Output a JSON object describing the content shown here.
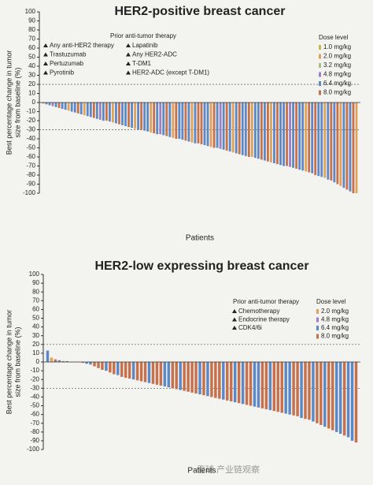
{
  "chart_data": [
    {
      "type": "bar",
      "title": "HER2-positive breast cancer",
      "ylabel": [
        "Best percentage change in tumor",
        "size from baseline (%)"
      ],
      "xlabel": "Patients",
      "ylim": [
        -100,
        100
      ],
      "yticks": [
        100,
        90,
        80,
        70,
        60,
        50,
        40,
        30,
        20,
        10,
        0,
        -10,
        -20,
        -30,
        -40,
        -50,
        -60,
        -70,
        -80,
        -90,
        -100
      ],
      "reference_lines": [
        20,
        -30
      ],
      "values": [
        -1,
        -2,
        -3,
        -4,
        -5,
        -6,
        -7,
        -8,
        -9,
        -10,
        -11,
        -12,
        -13,
        -14,
        -15,
        -16,
        -17,
        -18,
        -19,
        -20,
        -20,
        -21,
        -22,
        -23,
        -24,
        -25,
        -26,
        -27,
        -28,
        -29,
        -30,
        -30,
        -31,
        -32,
        -33,
        -34,
        -35,
        -35,
        -36,
        -37,
        -38,
        -39,
        -40,
        -40,
        -41,
        -42,
        -43,
        -44,
        -45,
        -45,
        -46,
        -47,
        -48,
        -49,
        -50,
        -50,
        -51,
        -52,
        -53,
        -54,
        -55,
        -56,
        -57,
        -58,
        -59,
        -60,
        -60,
        -61,
        -62,
        -63,
        -64,
        -65,
        -66,
        -67,
        -68,
        -69,
        -70,
        -70,
        -71,
        -72,
        -73,
        -74,
        -75,
        -76,
        -77,
        -78,
        -80,
        -81,
        -82,
        -83,
        -85,
        -86,
        -88,
        -90,
        -92,
        -94,
        -96,
        -98,
        -100,
        -100
      ],
      "bar_dose_levels": [
        5,
        4,
        4,
        3,
        4,
        5,
        4,
        4,
        1,
        4,
        4,
        5,
        4,
        1,
        4,
        4,
        5,
        4,
        3,
        4,
        5,
        4,
        1,
        4,
        5,
        4,
        4,
        5,
        4,
        1,
        4,
        5,
        4,
        4,
        1,
        5,
        4,
        3,
        4,
        5,
        4,
        1,
        5,
        4,
        4,
        5,
        4,
        1,
        4,
        5,
        5,
        4,
        4,
        1,
        5,
        4,
        3,
        4,
        5,
        4,
        1,
        4,
        5,
        4,
        4,
        5,
        1,
        4,
        4,
        5,
        4,
        5,
        1,
        4,
        5,
        4,
        4,
        5,
        3,
        4,
        5,
        4,
        4,
        1,
        5,
        4,
        5,
        4,
        4,
        1,
        4,
        5,
        4,
        5,
        1,
        4,
        5,
        4,
        5,
        1
      ],
      "therapy_legend": {
        "title": "Prior anti-tumor therapy",
        "items": [
          "Any anti-HER2 therapy",
          "Trastuzumab",
          "Pertuzumab",
          "Pyrotinib",
          "Lapatinib",
          "Any HER2-ADC",
          "T-DM1",
          "HER2-ADC (except T-DM1)"
        ]
      },
      "dose_legend": {
        "title": "Dose level",
        "items": [
          {
            "name": "1.0 mg/kg",
            "color": "#c7b84c"
          },
          {
            "name": "2.0 mg/kg",
            "color": "#e0a25a"
          },
          {
            "name": "3.2 mg/kg",
            "color": "#a9c27a"
          },
          {
            "name": "4.8 mg/kg",
            "color": "#9c80c2"
          },
          {
            "name": "6.4 mg/kg",
            "color": "#5d88c6"
          },
          {
            "name": "8.0 mg/kg",
            "color": "#c7714c"
          }
        ]
      }
    },
    {
      "type": "bar",
      "title": "HER2-low expressing breast cancer",
      "ylabel": [
        "Best percentage change in tumor",
        "size from baseline (%)"
      ],
      "xlabel": "Patients",
      "ylim": [
        -100,
        100
      ],
      "yticks": [
        100,
        90,
        80,
        70,
        60,
        50,
        40,
        30,
        20,
        10,
        0,
        -10,
        -20,
        -30,
        -40,
        -50,
        -60,
        -70,
        -80,
        -90,
        -100
      ],
      "reference_lines": [
        20,
        -30
      ],
      "values": [
        13,
        5,
        3,
        2,
        1,
        1,
        0,
        0,
        0,
        -1,
        -2,
        -3,
        -5,
        -7,
        -9,
        -10,
        -12,
        -14,
        -15,
        -17,
        -18,
        -19,
        -20,
        -21,
        -22,
        -23,
        -24,
        -25,
        -26,
        -27,
        -28,
        -29,
        -30,
        -31,
        -32,
        -33,
        -34,
        -35,
        -36,
        -37,
        -38,
        -39,
        -40,
        -41,
        -42,
        -43,
        -44,
        -45,
        -46,
        -47,
        -48,
        -49,
        -50,
        -51,
        -52,
        -53,
        -54,
        -55,
        -56,
        -57,
        -58,
        -59,
        -60,
        -61,
        -62,
        -64,
        -65,
        -66,
        -68,
        -70,
        -72,
        -74,
        -76,
        -78,
        -80,
        -82,
        -84,
        -86,
        -90,
        -92
      ],
      "bar_dose_levels": [
        2,
        0,
        3,
        2,
        3,
        2,
        3,
        2,
        0,
        3,
        2,
        2,
        3,
        3,
        3,
        2,
        3,
        3,
        2,
        3,
        3,
        3,
        2,
        3,
        3,
        3,
        2,
        3,
        3,
        3,
        2,
        2,
        3,
        3,
        2,
        3,
        3,
        3,
        3,
        2,
        3,
        2,
        3,
        3,
        3,
        2,
        3,
        3,
        2,
        3,
        2,
        3,
        3,
        2,
        2,
        3,
        3,
        2,
        3,
        3,
        3,
        2,
        2,
        3,
        3,
        2,
        3,
        3,
        2,
        3,
        3,
        2,
        3,
        3,
        2,
        2,
        3,
        2,
        2,
        3
      ],
      "therapy_legend": {
        "title": "Prior anti-tumor therapy",
        "items": [
          "Chemotherapy",
          "Endocrine therapy",
          "CDK4/6i"
        ]
      },
      "dose_legend": {
        "title": "Dose level",
        "items": [
          {
            "name": "2.0 mg/kg",
            "color": "#e0a25a"
          },
          {
            "name": "4.8 mg/kg",
            "color": "#9c80c2"
          },
          {
            "name": "6.4 mg/kg",
            "color": "#5d88c6"
          },
          {
            "name": "8.0 mg/kg",
            "color": "#c7714c"
          }
        ]
      }
    }
  ],
  "watermark": "雪球 产业链观察"
}
